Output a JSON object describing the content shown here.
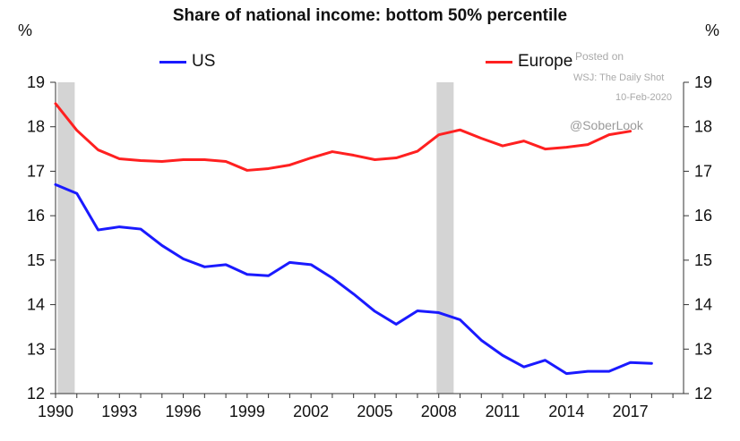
{
  "chart_data": {
    "type": "line",
    "title": "Share of national income: bottom 50% percentile",
    "y_unit_left": "%",
    "y_unit_right": "%",
    "ylim": [
      12,
      19
    ],
    "y_ticks": [
      12,
      13,
      14,
      15,
      16,
      17,
      18,
      19
    ],
    "xlim": [
      1990,
      2019.5
    ],
    "x_ticks": [
      1990,
      1993,
      1996,
      1999,
      2002,
      2005,
      2008,
      2011,
      2014,
      2017
    ],
    "grid": false,
    "legend": "top",
    "recession_bands": [
      {
        "start": 1990.1,
        "end": 1990.9
      },
      {
        "start": 2007.9,
        "end": 2008.7
      }
    ],
    "series": [
      {
        "name": "US",
        "color": "#1a1aff",
        "x": [
          1990,
          1991,
          1992,
          1993,
          1994,
          1995,
          1996,
          1997,
          1998,
          1999,
          2000,
          2001,
          2002,
          2003,
          2004,
          2005,
          2006,
          2007,
          2008,
          2009,
          2010,
          2011,
          2012,
          2013,
          2014,
          2015,
          2016,
          2017,
          2018
        ],
        "y": [
          16.7,
          16.5,
          15.68,
          15.75,
          15.7,
          15.33,
          15.03,
          14.85,
          14.9,
          14.68,
          14.65,
          14.95,
          14.9,
          14.6,
          14.24,
          13.85,
          13.56,
          13.86,
          13.82,
          13.66,
          13.2,
          12.86,
          12.6,
          12.75,
          12.45,
          12.5,
          12.5,
          12.7,
          12.68
        ]
      },
      {
        "name": "Europe",
        "color": "#ff2020",
        "x": [
          1990,
          1991,
          1992,
          1993,
          1994,
          1995,
          1996,
          1997,
          1998,
          1999,
          2000,
          2001,
          2002,
          2003,
          2004,
          2005,
          2006,
          2007,
          2008,
          2009,
          2010,
          2011,
          2012,
          2013,
          2014,
          2015,
          2016,
          2017
        ],
        "y": [
          18.52,
          17.92,
          17.48,
          17.28,
          17.24,
          17.22,
          17.26,
          17.26,
          17.22,
          17.02,
          17.06,
          17.14,
          17.3,
          17.44,
          17.36,
          17.26,
          17.3,
          17.45,
          17.82,
          17.93,
          17.74,
          17.57,
          17.68,
          17.5,
          17.54,
          17.6,
          17.82,
          17.9
        ]
      }
    ]
  },
  "credit": {
    "posted_on": "Posted on",
    "source": "WSJ: The Daily Shot",
    "date": "10-Feb-2020",
    "handle": "@SoberLook"
  },
  "colors": {
    "recession_band": "#d4d4d4",
    "axis": "#333333"
  }
}
